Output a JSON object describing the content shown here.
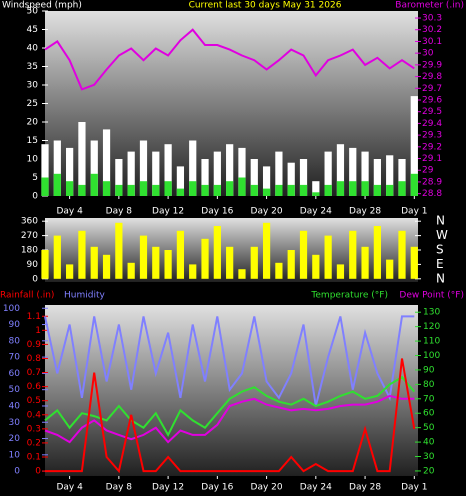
{
  "chart_data": [
    {
      "type": "line",
      "title": "Current last 30 days May 31 2026",
      "ylabel": "Windspeed (mph)",
      "y2label": "Barometer (.in)",
      "x": [
        0,
        1,
        2,
        3,
        4,
        5,
        6,
        7,
        8,
        9,
        10,
        11,
        12,
        13,
        14,
        15,
        16,
        17,
        18,
        19,
        20,
        21,
        22,
        23,
        24,
        25,
        26,
        27,
        28,
        29,
        30
      ],
      "xlim": [
        0,
        30.3
      ],
      "xticks": [
        {
          "value": 2,
          "label": "Day 4"
        },
        {
          "value": 6,
          "label": "Day 8"
        },
        {
          "value": 10,
          "label": "Day 12"
        },
        {
          "value": 14,
          "label": "Day 16"
        },
        {
          "value": 18,
          "label": "Day 20"
        },
        {
          "value": 22,
          "label": "Day 24"
        },
        {
          "value": 26,
          "label": "Day 28"
        },
        {
          "value": 30,
          "label": "Day 1"
        }
      ],
      "ylim": [
        0,
        50
      ],
      "yticks": [
        0,
        5,
        10,
        15,
        20,
        25,
        30,
        35,
        40,
        45,
        50
      ],
      "y2lim": [
        28.78,
        30.36
      ],
      "y2ticks": [
        28.8,
        28.9,
        29,
        29.1,
        29.2,
        29.3,
        29.4,
        29.5,
        29.6,
        29.7,
        29.8,
        29.9,
        30,
        30.1,
        30.2,
        30.3
      ],
      "series": [
        {
          "type": "bar",
          "color": "#ffffff",
          "values": [
            14,
            15,
            13,
            20,
            15,
            18,
            10,
            12,
            15,
            12,
            14,
            8,
            15,
            10,
            12,
            14,
            13,
            10,
            8,
            12,
            9,
            10,
            4,
            12,
            14,
            13,
            12,
            10,
            11,
            10,
            27
          ]
        },
        {
          "type": "bar",
          "color": "#30e030",
          "values": [
            5,
            6,
            4,
            3,
            6,
            4,
            3,
            3,
            4,
            3,
            4,
            2,
            4,
            3,
            3,
            4,
            5,
            3,
            2,
            3,
            3,
            3,
            1,
            3,
            4,
            4,
            4,
            3,
            3,
            4,
            6
          ]
        },
        {
          "color": "#e000e0",
          "axis": "y2",
          "values": [
            30.03,
            30.1,
            29.94,
            29.69,
            29.73,
            29.86,
            29.98,
            30.04,
            29.94,
            30.04,
            29.98,
            30.11,
            30.2,
            30.07,
            30.07,
            30.03,
            29.98,
            29.94,
            29.86,
            29.94,
            30.03,
            29.98,
            29.81,
            29.94,
            29.98,
            30.03,
            29.9,
            29.96,
            29.87,
            29.94,
            29.87
          ]
        }
      ]
    },
    {
      "type": "bar",
      "x": [
        0,
        1,
        2,
        3,
        4,
        5,
        6,
        7,
        8,
        9,
        10,
        11,
        12,
        13,
        14,
        15,
        16,
        17,
        18,
        19,
        20,
        21,
        22,
        23,
        24,
        25,
        26,
        27,
        28,
        29,
        30
      ],
      "xlim": [
        0,
        30.3
      ],
      "ylim": [
        -20,
        380
      ],
      "yticks": [
        0,
        90,
        180,
        270,
        360
      ],
      "y2lim": [
        -20,
        380
      ],
      "y2ticks": [
        {
          "value": 0,
          "label": "N"
        },
        {
          "value": 90,
          "label": "E"
        },
        {
          "value": 180,
          "label": "S"
        },
        {
          "value": 270,
          "label": "W"
        },
        {
          "value": 360,
          "label": "N"
        }
      ],
      "series": [
        {
          "color": "#ffff00",
          "values": [
            180,
            270,
            90,
            300,
            200,
            150,
            350,
            100,
            270,
            200,
            180,
            300,
            90,
            250,
            330,
            200,
            60,
            200,
            350,
            100,
            180,
            300,
            150,
            270,
            90,
            300,
            200,
            330,
            120,
            300,
            200
          ]
        }
      ]
    },
    {
      "type": "line",
      "x": [
        0,
        1,
        2,
        3,
        4,
        5,
        6,
        7,
        8,
        9,
        10,
        11,
        12,
        13,
        14,
        15,
        16,
        17,
        18,
        19,
        20,
        21,
        22,
        23,
        24,
        25,
        26,
        27,
        28,
        29,
        30
      ],
      "xlim": [
        0,
        30.3
      ],
      "xticks": [
        {
          "value": 2,
          "label": "Day 4"
        },
        {
          "value": 6,
          "label": "Day 8"
        },
        {
          "value": 10,
          "label": "Day 12"
        },
        {
          "value": 14,
          "label": "Day 16"
        },
        {
          "value": 18,
          "label": "Day 20"
        },
        {
          "value": 22,
          "label": "Day 24"
        },
        {
          "value": 26,
          "label": "Day 28"
        },
        {
          "value": 30,
          "label": "Day 1"
        }
      ],
      "ylim": [
        -3,
        102
      ],
      "yticks": [
        0,
        10,
        20,
        30,
        40,
        50,
        60,
        70,
        80,
        90,
        100
      ],
      "y2lim": [
        16.5,
        135
      ],
      "y2ticks": [
        20,
        30,
        40,
        50,
        60,
        70,
        80,
        90,
        100,
        110,
        120,
        130
      ],
      "y3lim": [
        -0.035,
        1.18
      ],
      "y3ticks": [
        0,
        0.1,
        0.2,
        0.3,
        0.4,
        0.5,
        0.6,
        0.7,
        0.8,
        0.9,
        1,
        1.1
      ],
      "series": [
        {
          "name": "Humidity",
          "color": "#8080ff",
          "values": [
            95,
            60,
            90,
            45,
            95,
            55,
            90,
            50,
            95,
            60,
            85,
            45,
            90,
            55,
            95,
            50,
            60,
            95,
            55,
            45,
            60,
            90,
            40,
            70,
            95,
            50,
            85,
            60,
            45,
            95,
            95
          ]
        },
        {
          "name": "Temperature (°F)",
          "color": "#30e030",
          "axis": "y2",
          "values": [
            55,
            62,
            50,
            60,
            58,
            55,
            65,
            55,
            50,
            60,
            45,
            62,
            55,
            50,
            60,
            70,
            75,
            78,
            72,
            68,
            66,
            70,
            65,
            68,
            72,
            75,
            70,
            72,
            80,
            85,
            75
          ]
        },
        {
          "name": "Dew Point (°F)",
          "color": "#e000e0",
          "axis": "y2",
          "values": [
            48,
            45,
            40,
            50,
            55,
            48,
            45,
            42,
            45,
            50,
            40,
            48,
            45,
            45,
            52,
            65,
            68,
            70,
            66,
            64,
            62,
            63,
            62,
            63,
            65,
            66,
            66,
            68,
            72,
            70,
            70
          ]
        },
        {
          "name": "Rainfall (.in)",
          "color": "#ff0000",
          "axis": "y3",
          "values": [
            0,
            0,
            0,
            0,
            0.7,
            0.1,
            0,
            0.4,
            0,
            0,
            0.1,
            0,
            0,
            0,
            0,
            0,
            0,
            0,
            0,
            0,
            0.1,
            0,
            0.05,
            0,
            0,
            0,
            0.3,
            0,
            0,
            0.8,
            0.3
          ]
        }
      ]
    }
  ]
}
